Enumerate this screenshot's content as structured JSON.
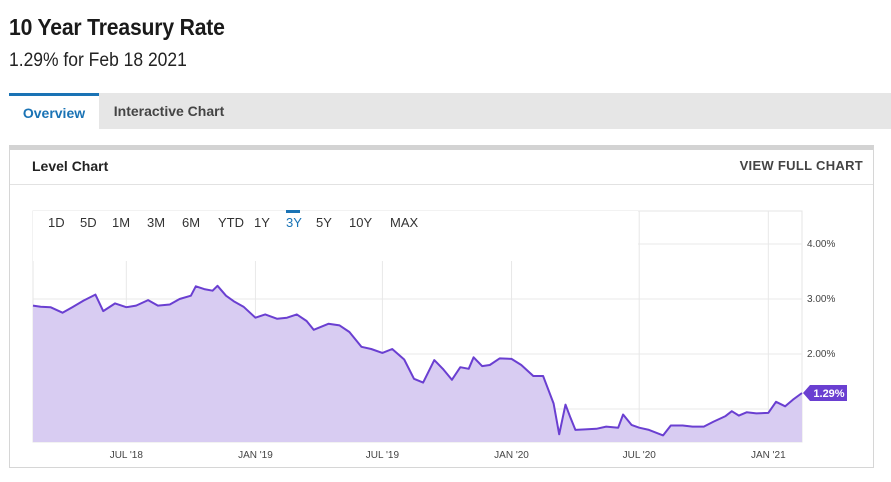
{
  "header": {
    "title": "10 Year Treasury Rate",
    "subtitle": "1.29% for Feb 18 2021"
  },
  "tabs": [
    {
      "label": "Overview",
      "active": true
    },
    {
      "label": "Interactive Chart",
      "active": false
    }
  ],
  "card": {
    "title": "Level Chart",
    "view_full_label": "VIEW FULL CHART"
  },
  "ranges": {
    "options": [
      "1D",
      "5D",
      "1M",
      "3M",
      "6M",
      "YTD",
      "1Y",
      "3Y",
      "5Y",
      "10Y",
      "MAX"
    ],
    "selected": "3Y"
  },
  "colors": {
    "accent": "#1a73b5",
    "line": "#6a3fd1",
    "fill": "#d8ccf2",
    "label_bg": "#6a3fd1"
  },
  "chart_data": {
    "type": "area",
    "title": "10 Year Treasury Rate",
    "xlabel": "",
    "ylabel": "",
    "x_range": [
      "2018-02-18",
      "2021-02-18"
    ],
    "ylim": [
      0.4,
      4.6
    ],
    "y_ticks": [
      {
        "value": 2,
        "label": "2.00%"
      },
      {
        "value": 3,
        "label": "3.00%"
      },
      {
        "value": 4,
        "label": "4.00%"
      }
    ],
    "x_ticks": [
      {
        "date": "2018-07-01",
        "label": "JUL '18"
      },
      {
        "date": "2019-01-01",
        "label": "JAN '19"
      },
      {
        "date": "2019-07-01",
        "label": "JUL '19"
      },
      {
        "date": "2020-01-01",
        "label": "JAN '20"
      },
      {
        "date": "2020-07-01",
        "label": "JUL '20"
      },
      {
        "date": "2021-01-01",
        "label": "JAN '21"
      }
    ],
    "current_value_label": "1.29%",
    "grid": true,
    "series": [
      {
        "dates": [
          "2018-02-18",
          "2018-03-01",
          "2018-03-15",
          "2018-04-01",
          "2018-04-15",
          "2018-05-01",
          "2018-05-18",
          "2018-05-29",
          "2018-06-15",
          "2018-07-01",
          "2018-07-15",
          "2018-08-01",
          "2018-08-15",
          "2018-09-01",
          "2018-09-15",
          "2018-10-01",
          "2018-10-08",
          "2018-10-20",
          "2018-11-01",
          "2018-11-08",
          "2018-11-20",
          "2018-12-01",
          "2018-12-15",
          "2019-01-01",
          "2019-01-15",
          "2019-02-01",
          "2019-02-15",
          "2019-03-01",
          "2019-03-15",
          "2019-03-25",
          "2019-04-15",
          "2019-05-01",
          "2019-05-15",
          "2019-06-01",
          "2019-06-15",
          "2019-07-01",
          "2019-07-15",
          "2019-08-01",
          "2019-08-15",
          "2019-08-28",
          "2019-09-13",
          "2019-09-25",
          "2019-10-08",
          "2019-10-20",
          "2019-11-01",
          "2019-11-08",
          "2019-11-20",
          "2019-12-01",
          "2019-12-15",
          "2020-01-01",
          "2020-01-15",
          "2020-02-01",
          "2020-02-15",
          "2020-03-01",
          "2020-03-09",
          "2020-03-18",
          "2020-03-25",
          "2020-04-01",
          "2020-04-15",
          "2020-05-01",
          "2020-05-15",
          "2020-06-01",
          "2020-06-08",
          "2020-06-20",
          "2020-07-01",
          "2020-07-15",
          "2020-08-04",
          "2020-08-15",
          "2020-09-01",
          "2020-09-15",
          "2020-10-01",
          "2020-10-15",
          "2020-11-01",
          "2020-11-10",
          "2020-11-20",
          "2020-12-01",
          "2020-12-15",
          "2021-01-01",
          "2021-01-12",
          "2021-01-25",
          "2021-02-05",
          "2021-02-18"
        ],
        "values": [
          2.88,
          2.86,
          2.85,
          2.75,
          2.85,
          2.97,
          3.08,
          2.78,
          2.92,
          2.85,
          2.88,
          2.98,
          2.88,
          2.9,
          3.0,
          3.06,
          3.23,
          3.18,
          3.15,
          3.24,
          3.06,
          2.96,
          2.86,
          2.66,
          2.72,
          2.64,
          2.66,
          2.72,
          2.6,
          2.44,
          2.55,
          2.52,
          2.4,
          2.13,
          2.09,
          2.02,
          2.09,
          1.9,
          1.55,
          1.48,
          1.89,
          1.73,
          1.53,
          1.76,
          1.73,
          1.94,
          1.78,
          1.8,
          1.92,
          1.91,
          1.8,
          1.6,
          1.6,
          1.1,
          0.54,
          1.08,
          0.84,
          0.62,
          0.63,
          0.64,
          0.68,
          0.66,
          0.9,
          0.71,
          0.66,
          0.62,
          0.52,
          0.7,
          0.7,
          0.68,
          0.68,
          0.77,
          0.87,
          0.96,
          0.88,
          0.94,
          0.92,
          0.93,
          1.13,
          1.05,
          1.17,
          1.29
        ]
      }
    ]
  }
}
